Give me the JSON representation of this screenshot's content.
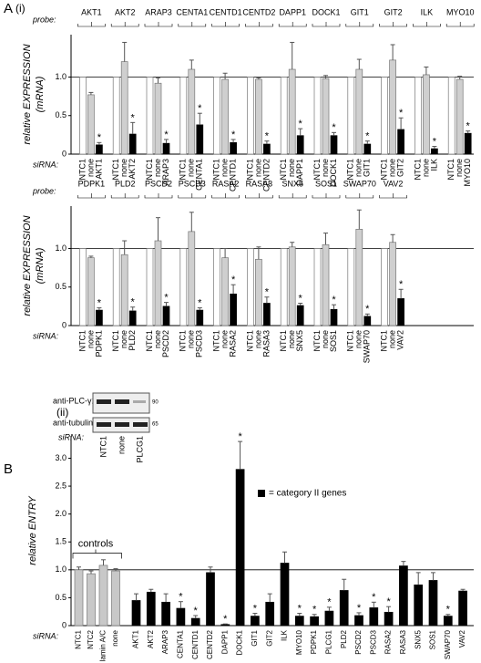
{
  "labels": {
    "a": "A",
    "a_i": "(i)",
    "a_ii": "(ii)",
    "b": "B"
  },
  "chart_data": [
    {
      "type": "grouped-bar",
      "ylabel": [
        "relative EXPRESSION",
        "(mRNA)"
      ],
      "probe_label": "probe:",
      "sirna_label": "siRNA:",
      "sig_marker": "*",
      "categories": [
        "AKT1",
        "AKT2",
        "ARAP3",
        "CENTA1",
        "CENTD1",
        "CENTD2",
        "DAPP1",
        "DOCK1",
        "GIT1",
        "GIT2",
        "ILK",
        "MYO10"
      ],
      "ylim": [
        0,
        1.55
      ],
      "yticks": [
        0,
        0.5,
        {
          "value": 1,
          "label": "1.0"
        }
      ],
      "refline": 1,
      "series": [
        {
          "name": "NTC1",
          "color": "#ffffff",
          "values": [
            1,
            1,
            1,
            1,
            1,
            1,
            1,
            1,
            1,
            1,
            1,
            1
          ]
        },
        {
          "name": "none",
          "color": "#cfcfcf",
          "values": [
            0.77,
            1.2,
            0.92,
            1.1,
            0.97,
            0.97,
            1.1,
            0.98,
            1.1,
            1.22,
            1.03,
            0.97
          ],
          "errors": [
            0.03,
            0.25,
            0.07,
            0.12,
            0.08,
            0.02,
            0.35,
            0.04,
            0.13,
            0.2,
            0.1,
            0.04
          ]
        },
        {
          "color": "#000000",
          "values": [
            0.12,
            0.26,
            0.14,
            0.38,
            0.15,
            0.13,
            0.24,
            0.24,
            0.13,
            0.32,
            0.07,
            0.27
          ],
          "errors": [
            0.03,
            0.15,
            0.05,
            0.15,
            0.04,
            0.04,
            0.09,
            0.04,
            0.04,
            0.15,
            0.03,
            0.03
          ]
        }
      ]
    },
    {
      "type": "grouped-bar",
      "ylabel": [
        "relative EXPRESSION",
        "(mRNA)"
      ],
      "probe_label": "probe:",
      "sirna_label": "siRNA:",
      "sig_marker": "*",
      "categories": [
        "PDPK1",
        "PLD2",
        "PSCD2",
        "PSCD3",
        "RASA2",
        "RASA3",
        "SNX5",
        "SOS1",
        "SWAP70",
        "VAV2"
      ],
      "ylim": [
        0,
        1.55
      ],
      "yticks": [
        0,
        0.5,
        {
          "value": 1,
          "label": "1.0"
        }
      ],
      "refline": 1,
      "series": [
        {
          "name": "NTC1",
          "color": "#ffffff",
          "values": [
            1,
            1,
            1,
            1,
            1,
            1,
            1,
            1,
            1,
            1
          ]
        },
        {
          "name": "none",
          "color": "#cfcfcf",
          "values": [
            0.88,
            0.92,
            1.1,
            1.22,
            0.88,
            0.86,
            1.02,
            1.05,
            1.25,
            1.08
          ],
          "errors": [
            0.02,
            0.18,
            0.3,
            0.25,
            0.12,
            0.16,
            0.06,
            0.15,
            0.25,
            0.1
          ]
        },
        {
          "color": "#000000",
          "values": [
            0.2,
            0.19,
            0.25,
            0.2,
            0.41,
            0.29,
            0.26,
            0.21,
            0.12,
            0.35
          ],
          "errors": [
            0.03,
            0.05,
            0.05,
            0.03,
            0.12,
            0.08,
            0.03,
            0.06,
            0.03,
            0.12
          ]
        }
      ]
    },
    {
      "type": "bar",
      "ylabel": "relative ENTRY",
      "sirna_label": "siRNA:",
      "sig_marker": "*",
      "ylim": [
        0,
        3.4
      ],
      "yticks": [
        0,
        0.5,
        {
          "value": 1,
          "label": "1.0"
        },
        1.5,
        {
          "value": 2,
          "label": "2.0"
        },
        2.5,
        {
          "value": 3,
          "label": "3.0"
        }
      ],
      "refline": 1,
      "series": [
        {
          "name": "controls",
          "color": "#c8c8c8",
          "categories": [
            "NTC1",
            "NTC2",
            "lamin A/C",
            "none"
          ],
          "values": [
            1,
            0.93,
            1.08,
            0.98
          ],
          "errors": [
            0.05,
            0.05,
            0.1,
            0.04
          ]
        },
        {
          "name": "= category II genes",
          "color": "#000000",
          "categories": [
            "AKT1",
            "AKT2",
            "ARAP3",
            "CENTA1",
            "CENTD1",
            "CENTD2",
            "DAPP1",
            "DOCK1",
            "GIT1",
            "GIT2",
            "ILK",
            "MYO10",
            "PDPK1",
            "PLCG1",
            "PLD2",
            "PSCD2",
            "PSCD3",
            "RASA2",
            "RASA3",
            "SNX5",
            "SOS1",
            "SWAP70",
            "VAV2"
          ],
          "values": [
            0.45,
            0.6,
            0.42,
            0.31,
            0.13,
            0.95,
            0.02,
            2.8,
            0.17,
            0.42,
            1.12,
            0.17,
            0.16,
            0.26,
            0.63,
            0.18,
            0.32,
            0.24,
            1.07,
            0.73,
            0.81,
            0.17,
            0.62
          ],
          "errors": [
            0.12,
            0.05,
            0.15,
            0.12,
            0.05,
            0.1,
            0.01,
            0.5,
            0.05,
            0.15,
            0.2,
            0.05,
            0.04,
            0.07,
            0.2,
            0.05,
            0.1,
            0.1,
            0.08,
            0.22,
            0.14,
            0.03,
            0.03
          ],
          "significant": [
            false,
            false,
            false,
            true,
            true,
            false,
            true,
            true,
            true,
            false,
            false,
            true,
            true,
            true,
            false,
            true,
            true,
            true,
            false,
            false,
            false,
            true,
            false
          ]
        }
      ]
    }
  ],
  "blot": {
    "rows": [
      "anti-PLC-γ1 blot",
      "anti-tubulin blot"
    ],
    "markers": [
      "90",
      "65"
    ],
    "sirna_label": "siRNA:",
    "lanes": [
      "NTC1",
      "none",
      "PLCG1"
    ]
  }
}
